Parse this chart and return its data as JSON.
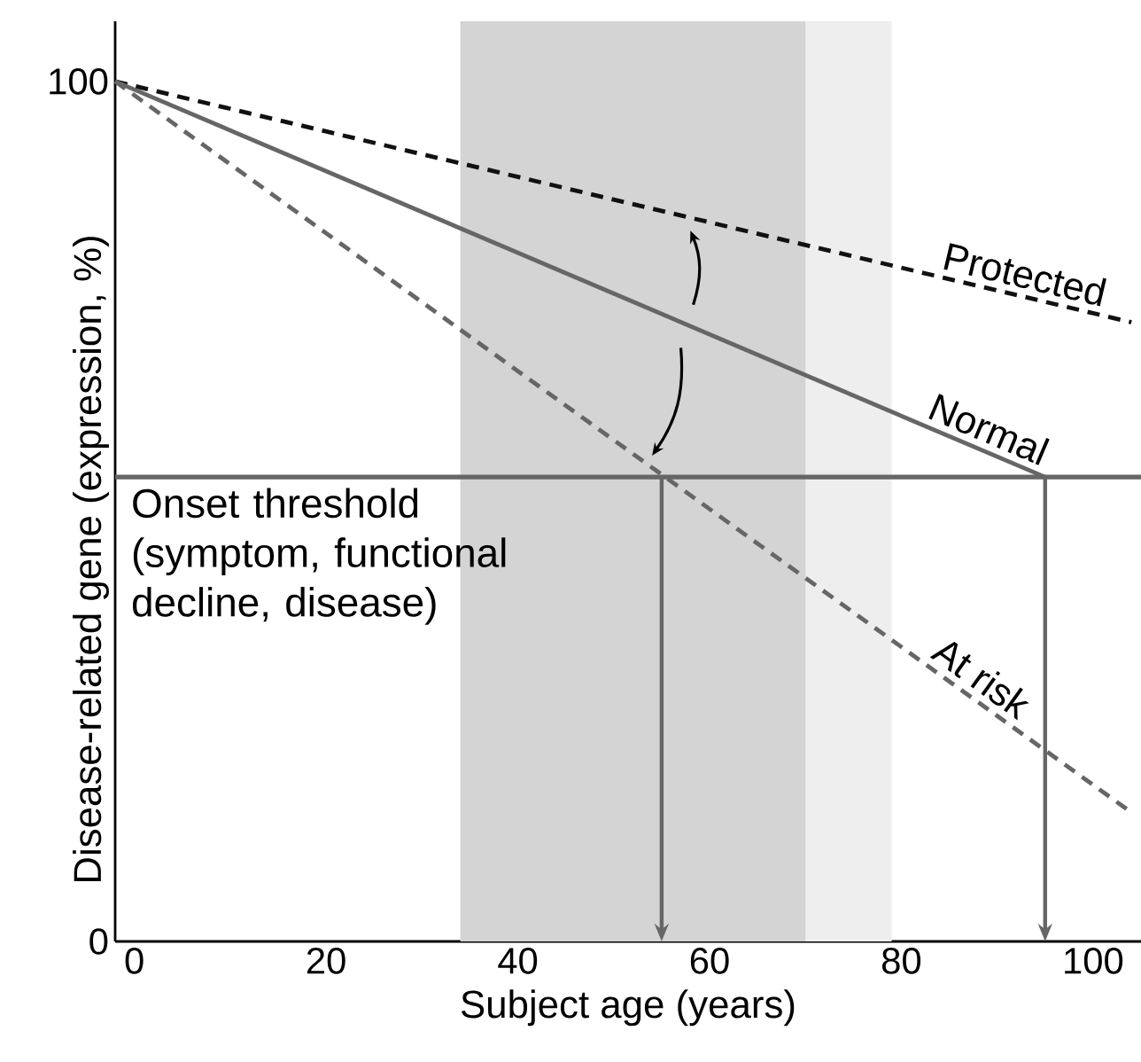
{
  "chart_data": {
    "type": "line",
    "xlabel": "Subject age (years)",
    "ylabel": "Disease-related gene (expression, %)",
    "xlim": [
      -2,
      105
    ],
    "ylim": [
      0,
      107
    ],
    "xticks": [
      0,
      20,
      40,
      60,
      80,
      100
    ],
    "yticks": [
      0,
      100
    ],
    "series": [
      {
        "name": "Protected",
        "color": "#111111",
        "line_style": "dashed",
        "x": [
          -2,
          104
        ],
        "values": [
          100,
          72
        ]
      },
      {
        "name": "Normal",
        "color": "#666666",
        "line_style": "solid",
        "x": [
          -2,
          95
        ],
        "values": [
          100,
          54
        ]
      },
      {
        "name": "At risk",
        "color": "#666666",
        "line_style": "dashed",
        "x": [
          -2,
          104
        ],
        "values": [
          100,
          15
        ]
      }
    ],
    "ref_lines": [
      {
        "axis": "y",
        "value": 54,
        "label": "Onset threshold (symptom, functional decline, disease)",
        "color": "#666666"
      },
      {
        "axis": "x",
        "value": 55,
        "color": "#666666"
      },
      {
        "axis": "x",
        "value": 95,
        "color": "#666666"
      }
    ],
    "bands": [
      {
        "axis": "x",
        "from": 64.5,
        "to": 79,
        "color": "#eeeeee"
      },
      {
        "axis": "x",
        "from": 34,
        "to": 70,
        "color": "#d4d4d4"
      }
    ]
  }
}
